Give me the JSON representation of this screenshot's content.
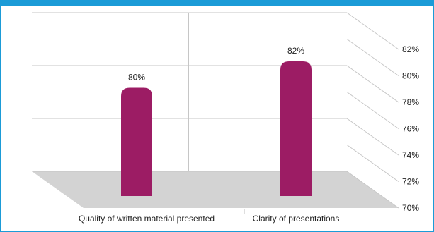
{
  "chart_data": {
    "type": "bar",
    "categories": [
      "Quality of written material presented",
      "Clarity of presentations"
    ],
    "values": [
      80,
      82
    ],
    "data_labels": [
      "80%",
      "82%"
    ],
    "ylim": [
      70,
      82
    ],
    "yticks": [
      "70%",
      "72%",
      "74%",
      "76%",
      "78%",
      "80%",
      "82%"
    ],
    "grid": true,
    "bar_color": "#9c1c64",
    "floor_color": "#d3d3d3",
    "header_color": "#1b9bd7"
  }
}
